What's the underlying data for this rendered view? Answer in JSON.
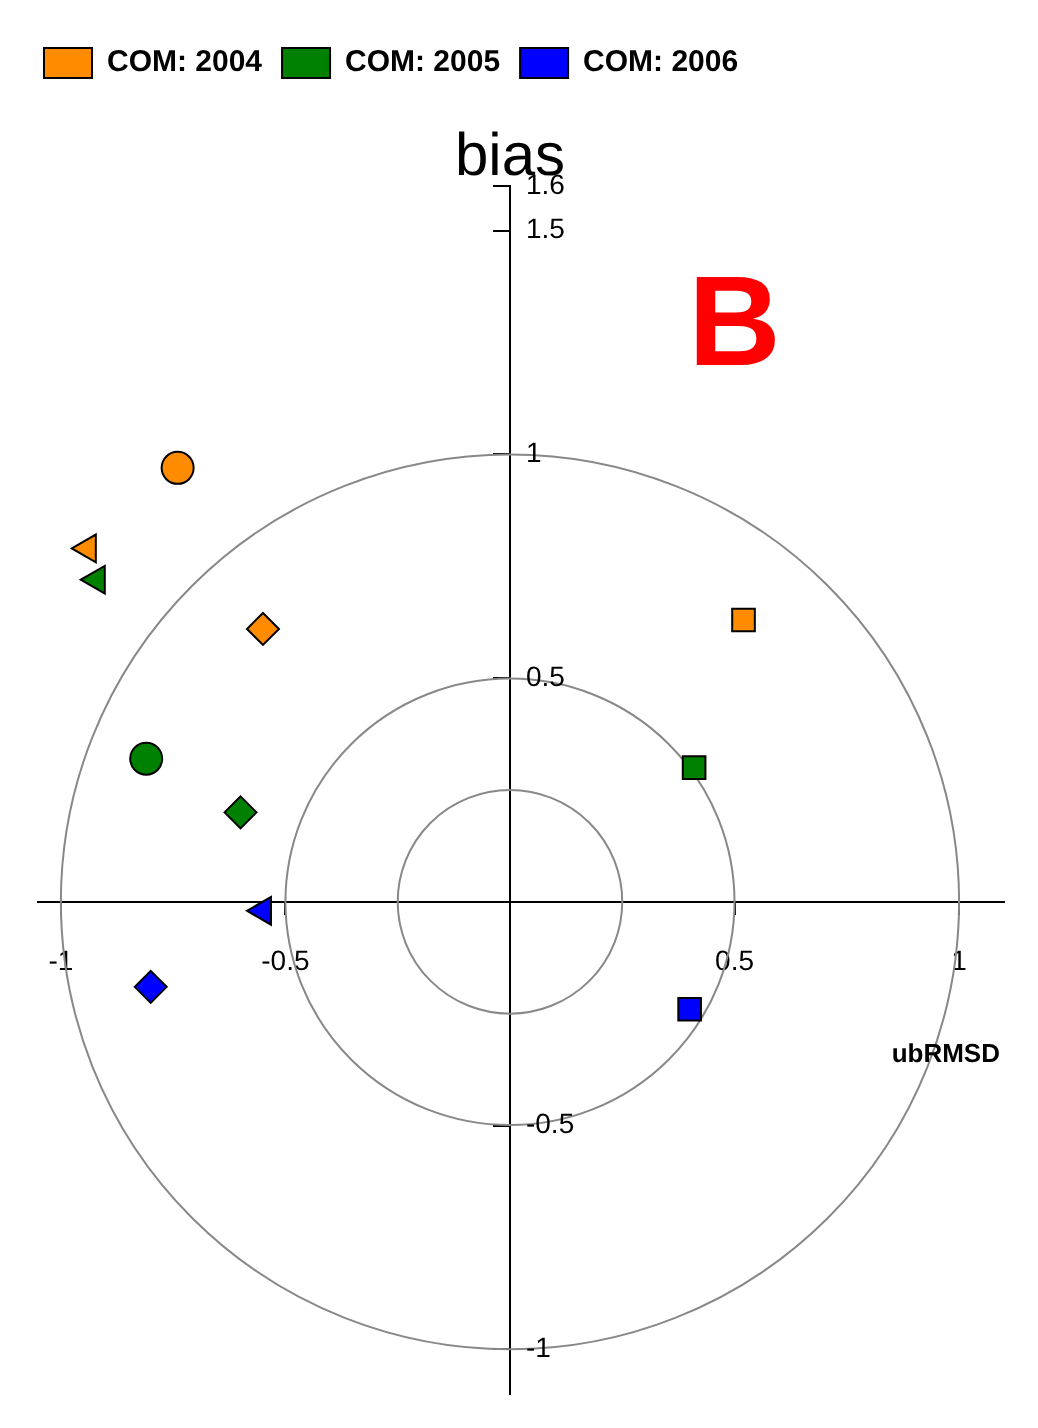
{
  "chart_data": {
    "type": "scatter",
    "xlabel": "ubRMSD",
    "ylabel": "bias",
    "annotations": [
      "B"
    ],
    "xlim": [
      -1.05,
      1.1
    ],
    "ylim": [
      -1.1,
      1.6
    ],
    "xticks": [
      -1,
      -0.5,
      0.5,
      1
    ],
    "yticks": [
      -1,
      -0.5,
      0.5,
      1,
      1.5,
      1.6
    ],
    "grid": false,
    "legend": "top left",
    "series": [
      {
        "name": "COM: 2004",
        "color": "#ff8c00",
        "x": [
          -0.74,
          -0.94,
          -0.55,
          0.52
        ],
        "values": [
          0.97,
          0.79,
          0.61,
          0.63
        ]
      },
      {
        "name": "COM: 2005",
        "color": "#008000",
        "x": [
          -0.81,
          -0.92,
          -0.6,
          0.41
        ],
        "values": [
          0.32,
          0.72,
          0.2,
          0.3
        ]
      },
      {
        "name": "COM: 2006",
        "color": "#0000ff",
        "x": [
          null,
          -0.55,
          -0.8,
          0.4
        ],
        "values": [
          null,
          -0.02,
          -0.19,
          -0.24
        ]
      }
    ]
  }
}
